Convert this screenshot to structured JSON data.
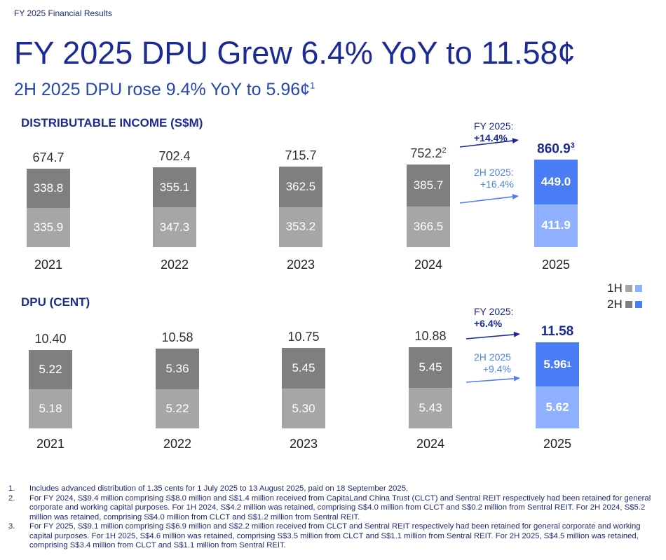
{
  "header": {
    "kicker": "FY 2025 Financial Results",
    "title": "FY 2025 DPU Grew 6.4% YoY to 11.58¢",
    "subtitle": "2H 2025 DPU rose 9.4% YoY to 5.96¢",
    "subtitle_sup": "1"
  },
  "colors": {
    "h1_gray": "#a6a6a6",
    "h2_gray": "#7f7f7f",
    "h1_blue": "#8fb0ff",
    "h2_blue": "#4a7cf5",
    "navy": "#1b2a94",
    "light_blue": "#4f7ef2"
  },
  "legend": {
    "h1": "1H",
    "h2": "2H"
  },
  "chart_data": [
    {
      "type": "bar",
      "stacked": true,
      "title": "DISTRIBUTABLE INCOME (S$M)",
      "categories": [
        "2021",
        "2022",
        "2023",
        "2024",
        "2025"
      ],
      "series": [
        {
          "name": "1H",
          "values": [
            335.9,
            347.3,
            353.2,
            366.5,
            411.9
          ]
        },
        {
          "name": "2H",
          "values": [
            338.8,
            355.1,
            362.5,
            385.7,
            449.0
          ]
        }
      ],
      "totals": [
        "674.7",
        "702.4",
        "715.7",
        "752.2",
        "860.9"
      ],
      "total_sups": [
        "",
        "",
        "",
        "2",
        "3"
      ],
      "seg_labels": {
        "h1": [
          "335.9",
          "347.3",
          "353.2",
          "366.5",
          "411.9"
        ],
        "h2": [
          "338.8",
          "355.1",
          "362.5",
          "385.7",
          "449.0"
        ]
      },
      "annotations": {
        "fy_label": "FY 2025:",
        "fy_value": "+14.4%",
        "h2_label": "2H 2025:",
        "h2_value": "+16.4%"
      }
    },
    {
      "type": "bar",
      "stacked": true,
      "title": "DPU (CENT)",
      "categories": [
        "2021",
        "2022",
        "2023",
        "2024",
        "2025"
      ],
      "series": [
        {
          "name": "1H",
          "values": [
            5.18,
            5.22,
            5.3,
            5.43,
            5.62
          ]
        },
        {
          "name": "2H",
          "values": [
            5.22,
            5.36,
            5.45,
            5.45,
            5.96
          ]
        }
      ],
      "totals": [
        "10.40",
        "10.58",
        "10.75",
        "10.88",
        "11.58"
      ],
      "total_sups": [
        "",
        "",
        "",
        "",
        ""
      ],
      "seg_labels": {
        "h1": [
          "5.18",
          "5.22",
          "5.30",
          "5.43",
          "5.62"
        ],
        "h2": [
          "5.22",
          "5.36",
          "5.45",
          "5.45",
          "5.96"
        ]
      },
      "h2_sups": [
        "",
        "",
        "",
        "",
        "1"
      ],
      "annotations": {
        "fy_label": "FY 2025:",
        "fy_value": "+6.4%",
        "h2_label": "2H 2025",
        "h2_value": "+9.4%"
      }
    }
  ],
  "footnotes": [
    {
      "num": "1.",
      "text": "Includes advanced distribution of 1.35 cents for 1 July 2025 to 13 August 2025, paid on 18 September 2025."
    },
    {
      "num": "2.",
      "text": "For FY 2024, S$9.4 million comprising S$8.0 million and S$1.4 million received from CapitaLand China Trust (CLCT) and Sentral REIT respectively had been retained for general corporate and working capital purposes. For 1H 2024, S$4.2 million was retained, comprising S$4.0 million from CLCT and S$0.2 million from Sentral REIT. For 2H 2024, S$5.2 million was retained, comprising S$4.0 million from CLCT and S$1.2 million from Sentral REIT."
    },
    {
      "num": "3.",
      "text": "For FY 2025, S$9.1 million comprising S$6.9 million and S$2.2 million received from CLCT and Sentral REIT respectively had been retained for general corporate and working capital purposes. For 1H 2025, S$4.6 million was retained, comprising S$3.5 million from CLCT and S$1.1 million from Sentral REIT. For 2H 2025, S$4.5 million was retained, comprising S$3.4 million from CLCT and S$1.1 million from Sentral REIT."
    }
  ]
}
